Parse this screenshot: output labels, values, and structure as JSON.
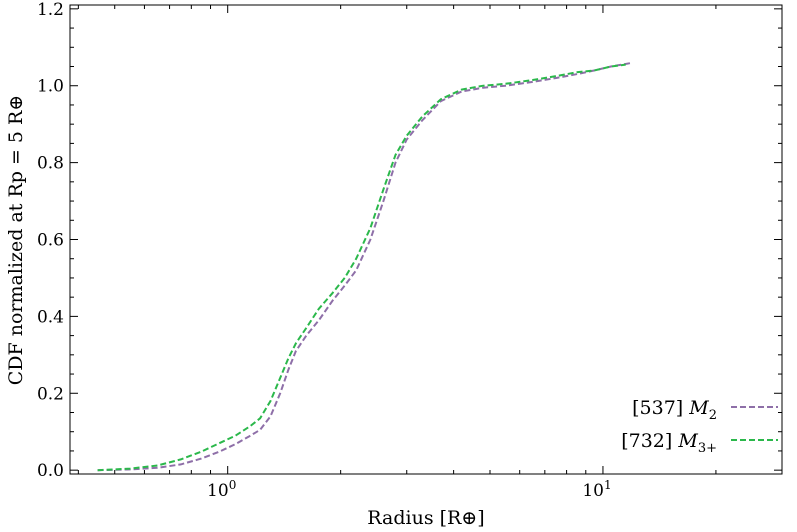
{
  "chart_data": {
    "type": "line",
    "xscale": "log",
    "xlim": [
      0.38,
      30
    ],
    "ylim": [
      -0.01,
      1.21
    ],
    "xlabel": "Radius [R⊕]",
    "ylabel": "CDF normalized at Rp = 5 R⊕",
    "x_ticks": [
      {
        "value": 1,
        "label": "10^0"
      },
      {
        "value": 10,
        "label": "10^1"
      }
    ],
    "y_ticks": [
      {
        "value": 0.0,
        "label": "0.0"
      },
      {
        "value": 0.2,
        "label": "0.2"
      },
      {
        "value": 0.4,
        "label": "0.4"
      },
      {
        "value": 0.6,
        "label": "0.6"
      },
      {
        "value": 0.8,
        "label": "0.8"
      },
      {
        "value": 1.0,
        "label": "1.0"
      },
      {
        "value": 1.2,
        "label": "1.2"
      }
    ],
    "grid": false,
    "legend_position": "lower-right",
    "series": [
      {
        "name": "[537] M2",
        "legend_prefix": "[537] ",
        "legend_symbol": "M",
        "legend_sub": "2",
        "color": "#8e6fa8",
        "points": [
          [
            0.45,
            0.0
          ],
          [
            0.55,
            0.002
          ],
          [
            0.65,
            0.006
          ],
          [
            0.75,
            0.015
          ],
          [
            0.85,
            0.03
          ],
          [
            0.95,
            0.048
          ],
          [
            1.05,
            0.068
          ],
          [
            1.15,
            0.09
          ],
          [
            1.22,
            0.105
          ],
          [
            1.3,
            0.14
          ],
          [
            1.38,
            0.2
          ],
          [
            1.45,
            0.26
          ],
          [
            1.52,
            0.31
          ],
          [
            1.62,
            0.35
          ],
          [
            1.75,
            0.39
          ],
          [
            1.9,
            0.44
          ],
          [
            2.05,
            0.48
          ],
          [
            2.2,
            0.52
          ],
          [
            2.4,
            0.6
          ],
          [
            2.6,
            0.7
          ],
          [
            2.8,
            0.8
          ],
          [
            3.0,
            0.86
          ],
          [
            3.3,
            0.91
          ],
          [
            3.7,
            0.96
          ],
          [
            4.2,
            0.985
          ],
          [
            4.8,
            0.995
          ],
          [
            5.5,
            1.0
          ],
          [
            6.5,
            1.01
          ],
          [
            7.5,
            1.02
          ],
          [
            8.5,
            1.03
          ],
          [
            9.5,
            1.04
          ],
          [
            10.5,
            1.05
          ],
          [
            12.0,
            1.06
          ]
        ]
      },
      {
        "name": "[732] M3+",
        "legend_prefix": "[732] ",
        "legend_symbol": "M",
        "legend_sub": "3+",
        "color": "#2bb84b",
        "points": [
          [
            0.45,
            0.0
          ],
          [
            0.55,
            0.004
          ],
          [
            0.65,
            0.012
          ],
          [
            0.75,
            0.028
          ],
          [
            0.85,
            0.048
          ],
          [
            0.95,
            0.07
          ],
          [
            1.05,
            0.09
          ],
          [
            1.15,
            0.115
          ],
          [
            1.22,
            0.135
          ],
          [
            1.3,
            0.18
          ],
          [
            1.38,
            0.24
          ],
          [
            1.45,
            0.29
          ],
          [
            1.52,
            0.33
          ],
          [
            1.62,
            0.37
          ],
          [
            1.75,
            0.42
          ],
          [
            1.9,
            0.46
          ],
          [
            2.05,
            0.5
          ],
          [
            2.2,
            0.55
          ],
          [
            2.4,
            0.63
          ],
          [
            2.6,
            0.73
          ],
          [
            2.8,
            0.82
          ],
          [
            3.0,
            0.87
          ],
          [
            3.3,
            0.92
          ],
          [
            3.7,
            0.965
          ],
          [
            4.2,
            0.99
          ],
          [
            4.8,
            1.0
          ],
          [
            5.5,
            1.005
          ],
          [
            6.5,
            1.015
          ],
          [
            7.5,
            1.025
          ],
          [
            8.5,
            1.035
          ],
          [
            9.5,
            1.04
          ],
          [
            10.5,
            1.05
          ],
          [
            11.5,
            1.055
          ]
        ]
      }
    ]
  }
}
